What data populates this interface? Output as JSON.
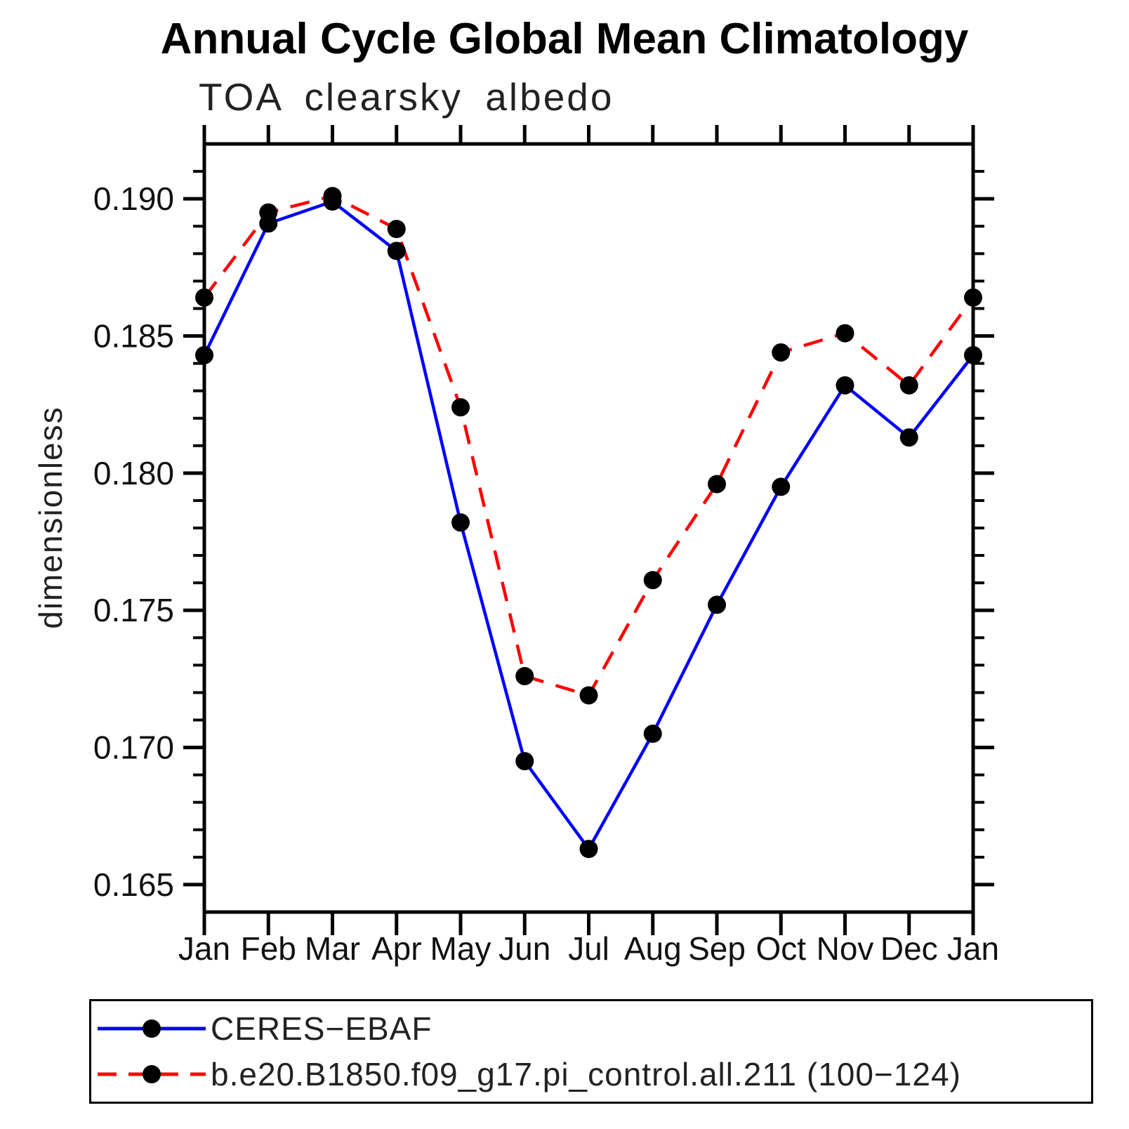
{
  "title": "Annual Cycle Global Mean Climatology",
  "subtitle": "TOA clearsky albedo",
  "y_axis": {
    "label": "dimensionless",
    "tick_labels": [
      "0.165",
      "0.170",
      "0.175",
      "0.180",
      "0.185",
      "0.190"
    ]
  },
  "x_axis": {
    "tick_labels": [
      "Jan",
      "Feb",
      "Mar",
      "Apr",
      "May",
      "Jun",
      "Jul",
      "Aug",
      "Sep",
      "Oct",
      "Nov",
      "Dec",
      "Jan"
    ]
  },
  "legend": {
    "items": [
      {
        "label": "CERES−EBAF",
        "color": "#0000ff",
        "line_style": "solid",
        "marker": "circle",
        "marker_color": "#000000"
      },
      {
        "label": "b.e20.B1850.f09_g17.pi_control.all.211 (100−124)",
        "color": "#ff0000",
        "line_style": "dashed",
        "marker": "circle",
        "marker_color": "#000000"
      }
    ]
  },
  "chart_data": {
    "type": "line",
    "title": "Annual Cycle Global Mean Climatology",
    "subtitle": "TOA clearsky albedo",
    "xlabel": "",
    "ylabel": "dimensionless",
    "categories": [
      "Jan",
      "Feb",
      "Mar",
      "Apr",
      "May",
      "Jun",
      "Jul",
      "Aug",
      "Sep",
      "Oct",
      "Nov",
      "Dec",
      "Jan"
    ],
    "series": [
      {
        "name": "CERES−EBAF",
        "color": "#0000ff",
        "line_style": "solid",
        "marker": "circle",
        "marker_color": "#000000",
        "values": [
          0.1843,
          0.1891,
          0.1899,
          0.1881,
          0.1782,
          0.1695,
          0.1663,
          0.1705,
          0.1752,
          0.1795,
          0.1832,
          0.1813,
          0.1843
        ]
      },
      {
        "name": "b.e20.B1850.f09_g17.pi_control.all.211 (100−124)",
        "color": "#ff0000",
        "line_style": "dashed",
        "marker": "circle",
        "marker_color": "#000000",
        "values": [
          0.1864,
          0.1895,
          0.1901,
          0.1889,
          0.1824,
          0.1726,
          0.1719,
          0.1761,
          0.1796,
          0.1844,
          0.1851,
          0.1832,
          0.1864
        ]
      }
    ],
    "ylim": [
      0.164,
      0.192
    ],
    "y_major_tick_step": 0.005,
    "y_minor_tick_step": 0.001,
    "grid": false,
    "legend_position": "bottom"
  }
}
